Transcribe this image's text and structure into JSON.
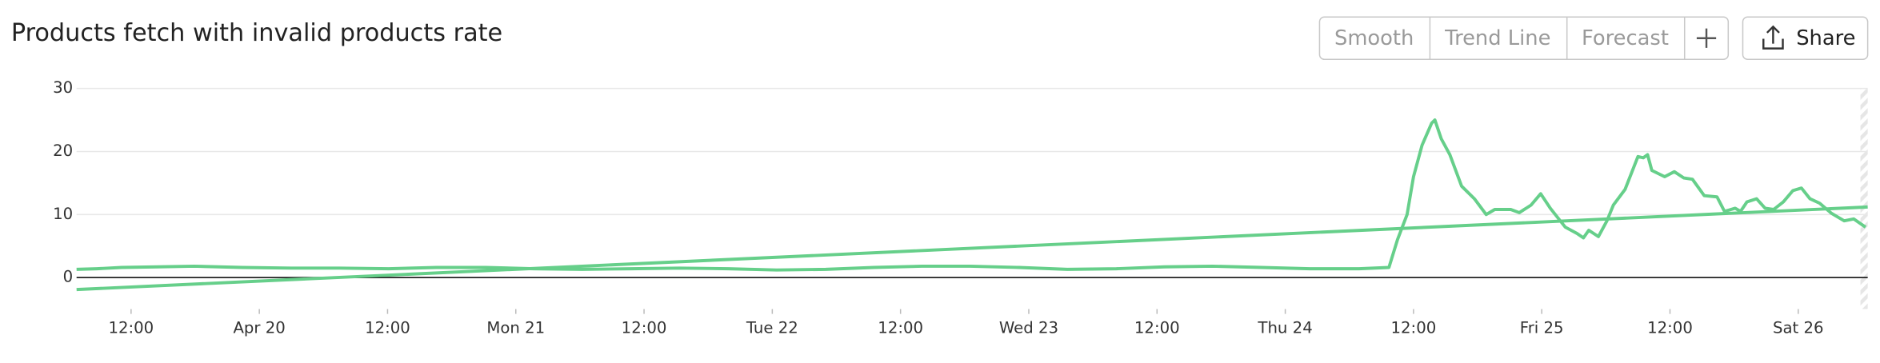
{
  "chart_data": {
    "type": "line",
    "title": "Products fetch with invalid products rate",
    "xlim": [
      6.9,
      174.5
    ],
    "xticks": [
      {
        "value": 12,
        "label": "12:00"
      },
      {
        "value": 24,
        "label": "Apr 20"
      },
      {
        "value": 36,
        "label": "12:00"
      },
      {
        "value": 48,
        "label": "Mon 21"
      },
      {
        "value": 60,
        "label": "12:00"
      },
      {
        "value": 72,
        "label": "Tue 22"
      },
      {
        "value": 84,
        "label": "12:00"
      },
      {
        "value": 96,
        "label": "Wed 23"
      },
      {
        "value": 108,
        "label": "12:00"
      },
      {
        "value": 120,
        "label": "Thu 24"
      },
      {
        "value": 132,
        "label": "12:00"
      },
      {
        "value": 144,
        "label": "Fri 25"
      },
      {
        "value": 156,
        "label": "12:00"
      },
      {
        "value": 168,
        "label": "Sat 26"
      }
    ],
    "ylim": [
      -5,
      30
    ],
    "yticks": [
      0,
      10,
      20,
      30
    ],
    "grid": true,
    "series": [
      {
        "color": "#66cf8a",
        "x": [
          6.9,
          8.8,
          11.1,
          14.5,
          17.9,
          22.4,
          27.0,
          31.5,
          36.1,
          40.6,
          45.2,
          49.7,
          54.2,
          58.8,
          63.3,
          67.9,
          72.4,
          77.0,
          81.5,
          86.0,
          90.5,
          95.1,
          99.6,
          104.2,
          108.7,
          113.2,
          117.8,
          122.3,
          126.9,
          129.7,
          130.5,
          131.4,
          132.0,
          132.8,
          133.7,
          134.0,
          134.6,
          135.4,
          136.5,
          137.7,
          138.8,
          139.6,
          141.1,
          141.9,
          143.0,
          143.9,
          144.8,
          146.2,
          147.3,
          147.9,
          148.4,
          149.3,
          150.1,
          150.7,
          151.8,
          153.0,
          153.5,
          153.9,
          154.3,
          155.5,
          156.4,
          157.3,
          158.1,
          159.2,
          160.4,
          161.1,
          162.1,
          162.6,
          163.2,
          164.1,
          164.9,
          165.7,
          166.6,
          167.5,
          168.3,
          169.1,
          170.0,
          171.1,
          172.3,
          173.2,
          174.3
        ],
        "values": [
          1.3,
          1.4,
          1.6,
          1.7,
          1.8,
          1.6,
          1.5,
          1.5,
          1.4,
          1.6,
          1.6,
          1.4,
          1.3,
          1.4,
          1.5,
          1.4,
          1.2,
          1.3,
          1.6,
          1.8,
          1.8,
          1.6,
          1.3,
          1.4,
          1.7,
          1.8,
          1.6,
          1.4,
          1.4,
          1.6,
          6,
          10,
          16,
          21,
          24.5,
          25,
          22,
          19.5,
          14.5,
          12.5,
          10,
          10.8,
          10.8,
          10.3,
          11.5,
          13.3,
          11,
          8,
          7,
          6.3,
          7.5,
          6.5,
          9,
          11.5,
          14,
          19.2,
          19,
          19.5,
          17,
          16,
          16.8,
          15.8,
          15.6,
          13,
          12.8,
          10.5,
          11,
          10.5,
          12,
          12.5,
          11,
          10.8,
          12,
          13.8,
          14.2,
          12.5,
          11.8,
          10.2,
          9,
          9.3,
          8
        ]
      },
      {
        "color": "#66cf8a",
        "x": [
          6.9,
          174.5
        ],
        "values": [
          -1.9,
          11.2
        ]
      }
    ]
  },
  "controls": [
    "Smooth",
    "Trend Line",
    "Forecast"
  ],
  "share": "Share"
}
